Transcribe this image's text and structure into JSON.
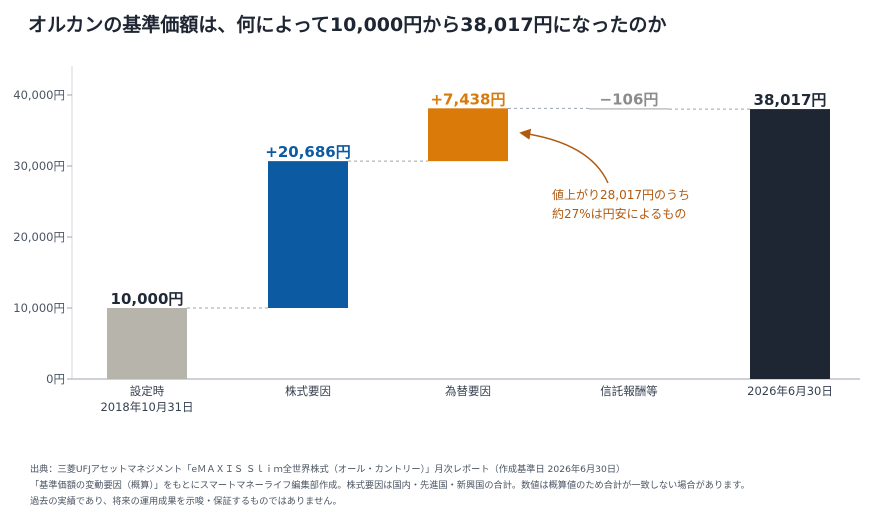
{
  "title": "オルカンの基準価額は、何によって10,000円から38,017円になったのか",
  "chart_data": {
    "type": "bar",
    "subtype": "waterfall",
    "categories": [
      [
        "設定時",
        "2018年10月31日"
      ],
      [
        "株式要因"
      ],
      [
        "為替要因"
      ],
      [
        "信託報酬等"
      ],
      [
        "2026年6月30日"
      ]
    ],
    "steps": [
      {
        "kind": "total",
        "value": 10000,
        "label": "10,000円",
        "color": "#b7b4ab",
        "label_color": "#1f2937"
      },
      {
        "kind": "delta",
        "value": 20686,
        "label": "+20,686円",
        "color": "#0b5aa2",
        "label_color": "#0b5aa2"
      },
      {
        "kind": "delta",
        "value": 7438,
        "label": "+7,438円",
        "color": "#d97a09",
        "label_color": "#d97a09"
      },
      {
        "kind": "delta",
        "value": -106,
        "label": "−106円",
        "color": "#b0b0b0",
        "label_color": "#8c8c8c"
      },
      {
        "kind": "total",
        "value": 38017,
        "label": "38,017円",
        "color": "#1e2633",
        "label_color": "#1f2937"
      }
    ],
    "yticks": [
      {
        "value": 0,
        "label": "0円"
      },
      {
        "value": 10000,
        "label": "10,000円"
      },
      {
        "value": 20000,
        "label": "20,000円"
      },
      {
        "value": 30000,
        "label": "30,000円"
      },
      {
        "value": 40000,
        "label": "40,000円"
      }
    ],
    "ylim": [
      0,
      40000
    ],
    "grid": false,
    "annotation": {
      "lines": [
        "値上がり28,017円のうち",
        "約27%は円安によるもの"
      ],
      "color": "#b05a10",
      "points_to_category": "為替要因"
    }
  },
  "footnotes": [
    "出典：三菱UFJアセットマネジメント「eＭＡＸＩＳ Ｓｌｉｍ全世界株式（オール・カントリー）」月次レポート（作成基準日 2026年6月30日）",
    "「基準価額の変動要因（概算）」をもとにスマートマネーライフ編集部作成。株式要因は国内・先進国・新興国の合計。数値は概算値のため合計が一致しない場合があります。",
    "過去の実績であり、将来の運用成果を示唆・保証するものではありません。"
  ]
}
